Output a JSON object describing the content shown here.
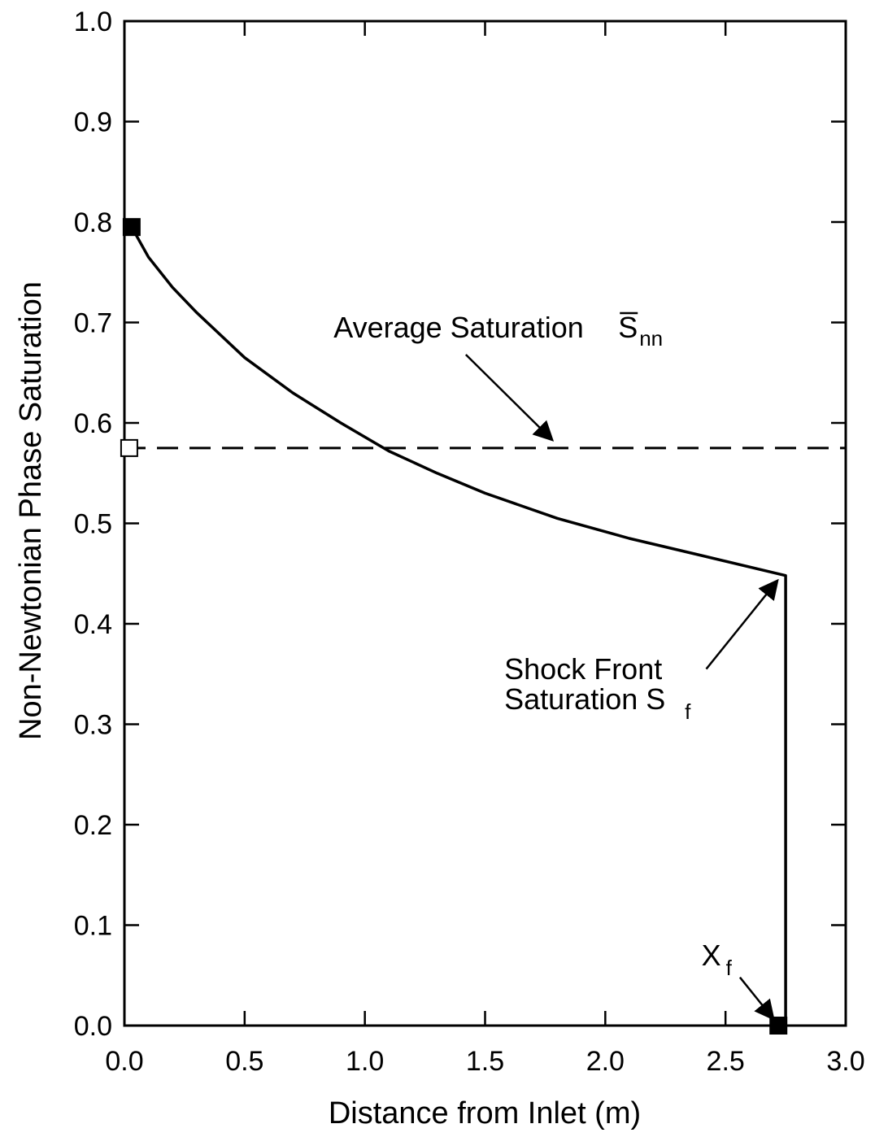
{
  "chart_data": {
    "type": "line",
    "title": "",
    "xlabel": "Distance from Inlet (m)",
    "ylabel": "Non-Newtonian Phase Saturation",
    "xlim": [
      0.0,
      3.0
    ],
    "ylim": [
      0.0,
      1.0
    ],
    "x_ticks": [
      "0.0",
      "0.5",
      "1.0",
      "1.5",
      "2.0",
      "2.5",
      "3.0"
    ],
    "x_tick_values": [
      0.0,
      0.5,
      1.0,
      1.5,
      2.0,
      2.5,
      3.0
    ],
    "y_ticks": [
      "0.0",
      "0.1",
      "0.2",
      "0.3",
      "0.4",
      "0.5",
      "0.6",
      "0.7",
      "0.8",
      "0.9",
      "1.0"
    ],
    "y_tick_values": [
      0.0,
      0.1,
      0.2,
      0.3,
      0.4,
      0.5,
      0.6,
      0.7,
      0.8,
      0.9,
      1.0
    ],
    "grid": false,
    "series": [
      {
        "style": "solid",
        "x": [
          0.03,
          0.1,
          0.2,
          0.3,
          0.5,
          0.7,
          0.9,
          1.1,
          1.3,
          1.5,
          1.8,
          2.1,
          2.4,
          2.75,
          2.75
        ],
        "y": [
          0.795,
          0.765,
          0.735,
          0.71,
          0.665,
          0.63,
          0.6,
          0.572,
          0.55,
          0.53,
          0.505,
          0.485,
          0.468,
          0.448,
          0.0
        ]
      },
      {
        "style": "dashed",
        "x": [
          0.0,
          3.0
        ],
        "y": [
          0.575,
          0.575
        ]
      }
    ],
    "markers": [
      {
        "shape": "filled-square",
        "x": 0.03,
        "y": 0.795
      },
      {
        "shape": "open-square",
        "x": 0.02,
        "y": 0.575
      },
      {
        "shape": "filled-square",
        "x": 2.72,
        "y": 0.0
      }
    ],
    "annotations": [
      {
        "text": "Average Saturation",
        "symbol": "S",
        "subscript": "nn",
        "overbar": true,
        "text_at": [
          0.87,
          0.685
        ],
        "arrow_to": [
          1.78,
          0.578
        ]
      },
      {
        "text": "Shock Front",
        "text_at": [
          1.58,
          0.345
        ]
      },
      {
        "text": "Saturation S",
        "subscript": "f",
        "text_at": [
          1.58,
          0.315
        ],
        "arrow_to": [
          2.73,
          0.448
        ]
      },
      {
        "text": "X",
        "subscript": "f",
        "text_at": [
          2.4,
          0.06
        ],
        "arrow_to": [
          2.72,
          0.0
        ]
      }
    ]
  }
}
